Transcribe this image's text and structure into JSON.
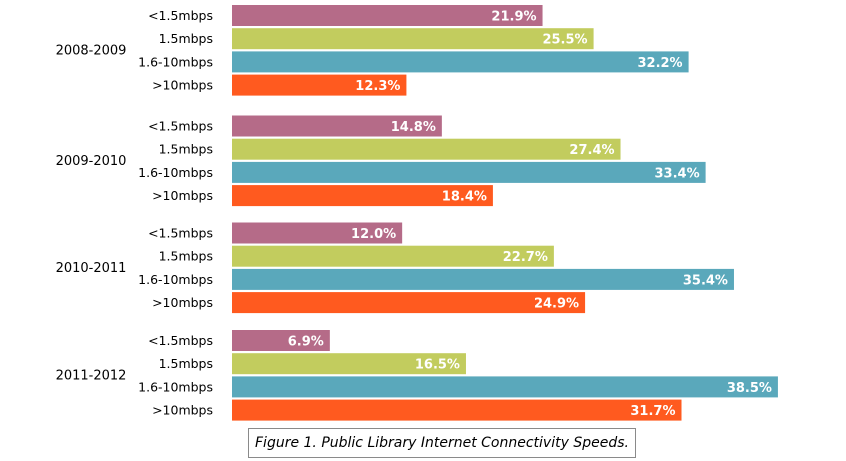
{
  "colors": {
    "<1.5mbps": "#b56b88",
    "1.5mbps": "#c2cc5e",
    "1.6-10mbps": "#5aa8bb",
    ">10mbps": "#ff5a1f",
    "value_label": "#ffffff",
    "text": "#000000"
  },
  "chart_data": {
    "type": "bar",
    "orientation": "horizontal",
    "caption": "Figure 1. Public Library Internet Connectivity Speeds.",
    "grid": false,
    "value_format": "percent_one_decimal",
    "xlim": [
      0,
      40
    ],
    "groups": [
      {
        "label": "2008-2009",
        "bars": [
          {
            "category": "<1.5mbps",
            "value": 21.9,
            "label": "21.9%"
          },
          {
            "category": "1.5mbps",
            "value": 25.5,
            "label": "25.5%"
          },
          {
            "category": "1.6-10mbps",
            "value": 32.2,
            "label": "32.2%"
          },
          {
            "category": ">10mbps",
            "value": 12.3,
            "label": "12.3%"
          }
        ]
      },
      {
        "label": "2009-2010",
        "bars": [
          {
            "category": "<1.5mbps",
            "value": 14.8,
            "label": "14.8%"
          },
          {
            "category": "1.5mbps",
            "value": 27.4,
            "label": "27.4%"
          },
          {
            "category": "1.6-10mbps",
            "value": 33.4,
            "label": "33.4%"
          },
          {
            "category": ">10mbps",
            "value": 18.4,
            "label": "18.4%"
          }
        ]
      },
      {
        "label": "2010-2011",
        "bars": [
          {
            "category": "<1.5mbps",
            "value": 12.0,
            "label": "12.0%"
          },
          {
            "category": "1.5mbps",
            "value": 22.7,
            "label": "22.7%"
          },
          {
            "category": "1.6-10mbps",
            "value": 35.4,
            "label": "35.4%"
          },
          {
            "category": ">10mbps",
            "value": 24.9,
            "label": "24.9%"
          }
        ]
      },
      {
        "label": "2011-2012",
        "bars": [
          {
            "category": "<1.5mbps",
            "value": 6.9,
            "label": "6.9%"
          },
          {
            "category": "1.5mbps",
            "value": 16.5,
            "label": "16.5%"
          },
          {
            "category": "1.6-10mbps",
            "value": 38.5,
            "label": "38.5%"
          },
          {
            "category": ">10mbps",
            "value": 31.7,
            "label": "31.7%"
          }
        ]
      }
    ]
  }
}
